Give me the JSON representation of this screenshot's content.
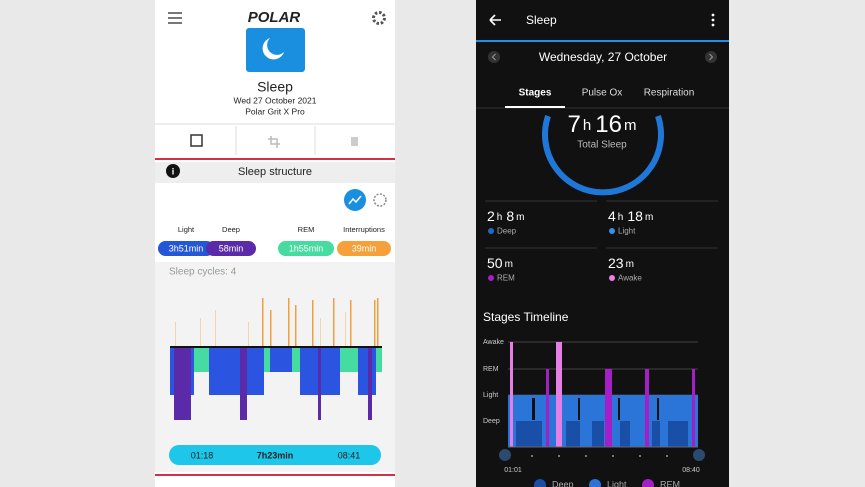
{
  "left_app": {
    "logo": "POLAR",
    "sleep_title": "Sleep",
    "date": "Wed 27 October 2021",
    "device": "Polar Grit X Pro",
    "section_title": "Sleep structure",
    "legend": [
      {
        "label": "Light",
        "value": "3h51min"
      },
      {
        "label": "Deep",
        "value": "58min"
      },
      {
        "label": "REM",
        "value": "1h55min"
      },
      {
        "label": "Interruptions",
        "value": "39min"
      }
    ],
    "cycles": "Sleep cycles: 4",
    "summary": {
      "start": "01:18",
      "duration": "7h23min",
      "end": "08:41"
    }
  },
  "right_app": {
    "title": "Sleep",
    "date": "Wednesday, 27 October",
    "tabs": [
      "Stages",
      "Pulse Ox",
      "Respiration"
    ],
    "total": {
      "parts": [
        "7",
        "h",
        "16",
        "m"
      ],
      "label": "Total Sleep"
    },
    "stats": [
      {
        "parts": [
          "2",
          "h",
          "8",
          "m"
        ],
        "label": "Deep"
      },
      {
        "parts": [
          "4",
          "h",
          "18",
          "m"
        ],
        "label": "Light"
      },
      {
        "parts": [
          "50",
          "m"
        ],
        "label": "REM"
      },
      {
        "parts": [
          "23",
          "m"
        ],
        "label": "Awake"
      }
    ],
    "timeline": {
      "title": "Stages Timeline",
      "levels": [
        "Awake",
        "REM",
        "Light",
        "Deep"
      ],
      "start": "01:01",
      "end": "08:40",
      "legend": [
        "Deep",
        "Light",
        "REM"
      ]
    }
  }
}
